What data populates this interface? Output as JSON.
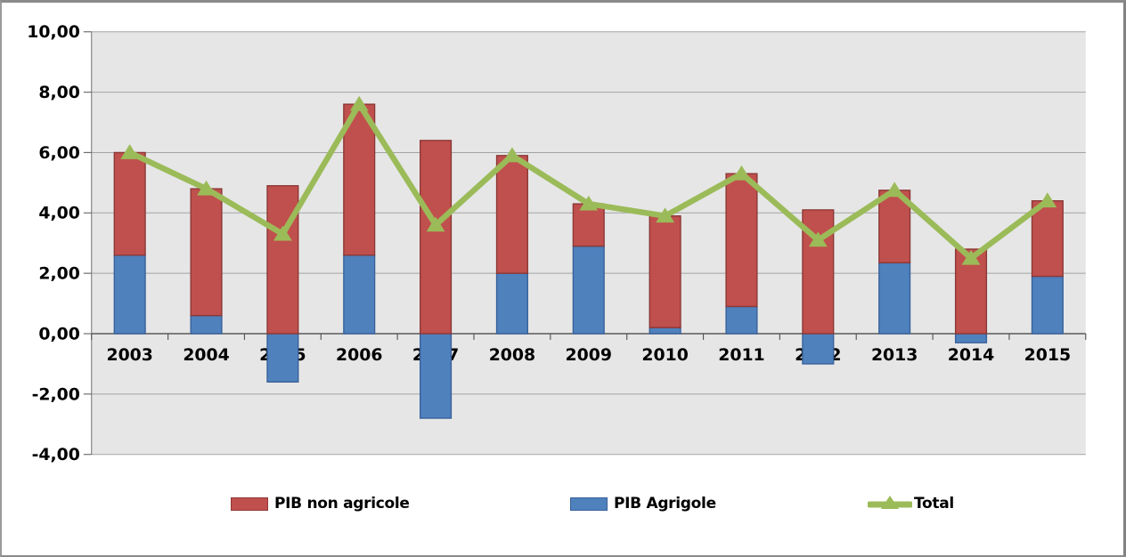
{
  "chart_data": {
    "type": "combo",
    "title": "",
    "xlabel": "",
    "ylabel": "",
    "categories": [
      "2003",
      "2004",
      "2005",
      "2006",
      "2007",
      "2008",
      "2009",
      "2010",
      "2011",
      "2012",
      "2013",
      "2014",
      "2015"
    ],
    "series": [
      {
        "name": "PIB Agrigole",
        "type": "bar",
        "stack": "a",
        "color": "#4F81BD",
        "border_color": "#38619A",
        "values": [
          2.6,
          0.6,
          -1.6,
          2.6,
          -2.8,
          2.0,
          2.9,
          0.2,
          0.9,
          -1.0,
          2.35,
          -0.3,
          1.9
        ]
      },
      {
        "name": "PIB non agricole",
        "type": "bar",
        "stack": "a",
        "color": "#C0504D",
        "border_color": "#8C3836",
        "values": [
          3.4,
          4.2,
          4.9,
          5.0,
          6.4,
          3.9,
          1.4,
          3.7,
          4.4,
          4.1,
          2.4,
          2.8,
          2.5
        ]
      },
      {
        "name": "Total",
        "type": "line",
        "color": "#9BBB59",
        "marker": "triangle",
        "values": [
          6.0,
          4.8,
          3.3,
          7.6,
          3.6,
          5.9,
          4.3,
          3.9,
          5.3,
          3.1,
          4.75,
          2.5,
          4.4
        ]
      }
    ],
    "y_axis": {
      "min": -4,
      "max": 10,
      "step": 2,
      "tick_labels": [
        "10,00",
        "8,00",
        "6,00",
        "4,00",
        "2,00",
        "0,00",
        "-2,00",
        "-4,00"
      ]
    },
    "grid": "horizontal",
    "plot_bg_color": "#E6E6E6",
    "gridline_color": "#A3A3A3",
    "axis_line_color": "#595959",
    "tick_color": "#6E6E6E",
    "legend": {
      "position": "bottom",
      "items": [
        {
          "label": "PIB non agricole",
          "shape": "rect",
          "color": "#C0504D",
          "border_color": "#8C3836"
        },
        {
          "label": "PIB Agrigole",
          "shape": "rect",
          "color": "#4F81BD",
          "border_color": "#38619A"
        },
        {
          "label": "Total",
          "shape": "line-triangle",
          "color": "#9BBB59"
        }
      ]
    }
  }
}
